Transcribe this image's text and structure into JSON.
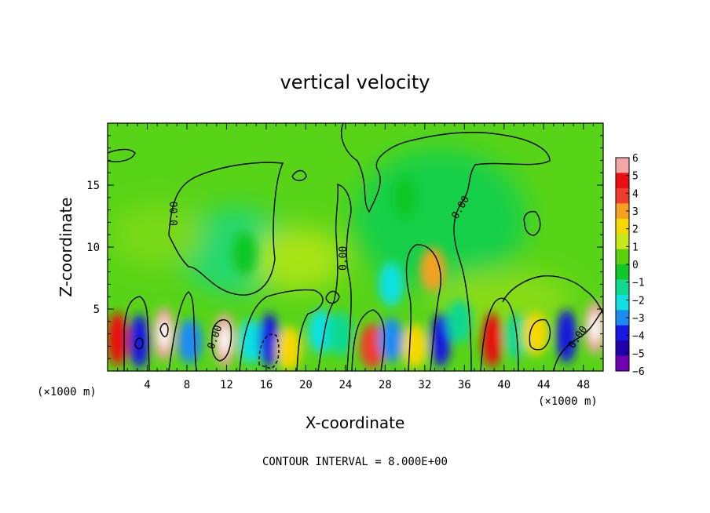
{
  "chart_data": {
    "type": "heatmap",
    "title": "vertical velocity",
    "xlabel": "X-coordinate",
    "ylabel": "Z-coordinate",
    "x_unit": "(×1000 m)",
    "x_unit_right": "(×1000 m)",
    "xlim": [
      0,
      50
    ],
    "ylim": [
      0,
      20
    ],
    "x_ticks": [
      4,
      8,
      12,
      16,
      20,
      24,
      28,
      32,
      36,
      40,
      44,
      48
    ],
    "y_ticks": [
      5,
      10,
      15
    ],
    "colorbar": {
      "levels": [
        6,
        5,
        4,
        3,
        2,
        1,
        0,
        -1,
        -2,
        -3,
        -4,
        -5,
        -6
      ],
      "colors": [
        "#f4a6a6",
        "#e81010",
        "#f03c2c",
        "#f5a020",
        "#f5d800",
        "#c8e81c",
        "#5ad00c",
        "#10c828",
        "#10d890",
        "#10e0e0",
        "#1c8cf0",
        "#1818e0",
        "#2000a8",
        "#7000b0"
      ]
    },
    "contour_labels": [
      "0.00",
      "0.00",
      "0.00",
      "0.00",
      "0.00"
    ],
    "footer": "CONTOUR INTERVAL = 8.000E+00",
    "cells": [
      {
        "x": 1.0,
        "z": 2.6,
        "v": 5
      },
      {
        "x": 3.2,
        "z": 2.4,
        "v": -5
      },
      {
        "x": 5.7,
        "z": 3.0,
        "v": 6
      },
      {
        "x": 8.3,
        "z": 2.4,
        "v": -4
      },
      {
        "x": 11.8,
        "z": 2.5,
        "v": 6
      },
      {
        "x": 14.4,
        "z": 2.4,
        "v": -3
      },
      {
        "x": 16.3,
        "z": 2.5,
        "v": -5
      },
      {
        "x": 18.3,
        "z": 1.8,
        "v": 2
      },
      {
        "x": 21.5,
        "z": 3.2,
        "v": -3
      },
      {
        "x": 23.5,
        "z": 3.0,
        "v": -2
      },
      {
        "x": 26.7,
        "z": 2.0,
        "v": 4
      },
      {
        "x": 28.6,
        "z": 7.0,
        "v": -3
      },
      {
        "x": 28.6,
        "z": 2.5,
        "v": -4
      },
      {
        "x": 31.0,
        "z": 2.0,
        "v": 2
      },
      {
        "x": 32.8,
        "z": 8.2,
        "v": 3
      },
      {
        "x": 33.6,
        "z": 2.5,
        "v": -5
      },
      {
        "x": 35.5,
        "z": 4.0,
        "v": -2
      },
      {
        "x": 38.8,
        "z": 2.5,
        "v": 5
      },
      {
        "x": 41.2,
        "z": 2.8,
        "v": -2
      },
      {
        "x": 43.2,
        "z": 3.0,
        "v": 2
      },
      {
        "x": 46.3,
        "z": 2.8,
        "v": -5
      },
      {
        "x": 49.2,
        "z": 3.5,
        "v": 6
      },
      {
        "x": 13.8,
        "z": 9.5,
        "v": -1
      },
      {
        "x": 30.0,
        "z": 14.0,
        "v": -1
      }
    ]
  }
}
